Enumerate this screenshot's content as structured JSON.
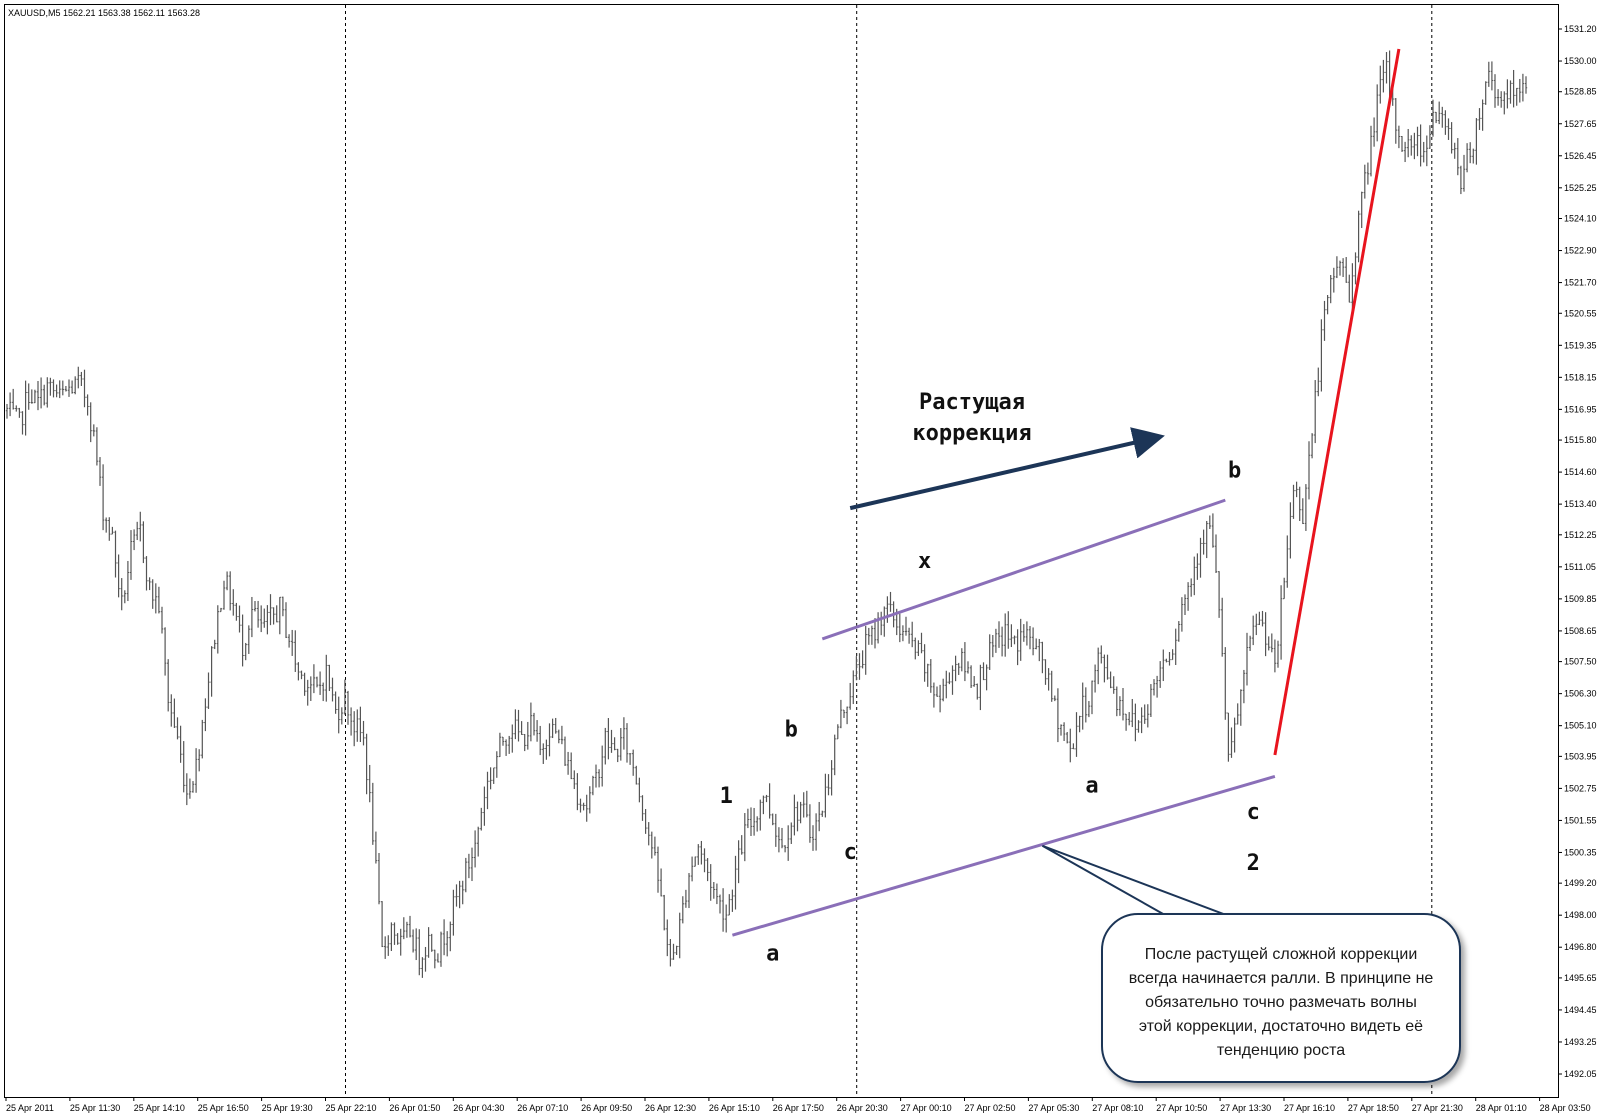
{
  "header": {
    "symbol_line": "XAUUSD,M5  1562.21 1563.38 1562.11 1563.28"
  },
  "colors": {
    "bars": "#555555",
    "channel": "#8a6fb8",
    "trend_red": "#e8141e",
    "arrow": "#1c3557",
    "grid": "#000000",
    "callout_border": "#1c3557"
  },
  "chart_data": {
    "type": "bar",
    "title": "",
    "symbol": "XAUUSD",
    "timeframe": "M5",
    "ylim": [
      1492.05,
      1531.2
    ],
    "y_ticks": [
      "1531.20",
      "1530.00",
      "1528.85",
      "1527.65",
      "1526.45",
      "1525.25",
      "1524.10",
      "1522.90",
      "1521.70",
      "1520.55",
      "1519.35",
      "1518.15",
      "1516.95",
      "1515.80",
      "1514.60",
      "1513.40",
      "1512.25",
      "1511.05",
      "1509.85",
      "1508.65",
      "1507.50",
      "1506.30",
      "1505.10",
      "1503.95",
      "1502.75",
      "1501.55",
      "1500.35",
      "1499.20",
      "1498.00",
      "1496.80",
      "1495.65",
      "1494.45",
      "1493.25",
      "1492.05"
    ],
    "x_ticks": [
      "25 Apr 2011",
      "25 Apr 11:30",
      "25 Apr 14:10",
      "25 Apr 16:50",
      "25 Apr 19:30",
      "25 Apr 22:10",
      "26 Apr 01:50",
      "26 Apr 04:30",
      "26 Apr 07:10",
      "26 Apr 09:50",
      "26 Apr 12:30",
      "26 Apr 15:10",
      "26 Apr 17:50",
      "26 Apr 20:30",
      "27 Apr 00:10",
      "27 Apr 02:50",
      "27 Apr 05:30",
      "27 Apr 08:10",
      "27 Apr 10:50",
      "27 Apr 13:30",
      "27 Apr 16:10",
      "27 Apr 18:50",
      "27 Apr 21:30",
      "28 Apr 01:10",
      "28 Apr 03:50"
    ],
    "day_separators_after_tick": [
      "25 Apr 22:10",
      "26 Apr 20:30",
      "27 Apr 21:30"
    ],
    "price_path": [
      [
        0,
        1516.9
      ],
      [
        4,
        1516.4
      ],
      [
        7,
        1517.6
      ],
      [
        10,
        1517.2
      ],
      [
        13,
        1517.8
      ],
      [
        17,
        1517.4
      ],
      [
        20,
        1517.7
      ],
      [
        23,
        1517.9
      ],
      [
        26,
        1517.3
      ],
      [
        28,
        1515.9
      ],
      [
        31,
        1513.2
      ],
      [
        34,
        1512.1
      ],
      [
        37,
        1509.6
      ],
      [
        40,
        1511.6
      ],
      [
        43,
        1512.4
      ],
      [
        46,
        1510.2
      ],
      [
        49,
        1509.6
      ],
      [
        52,
        1506.1
      ],
      [
        55,
        1504.6
      ],
      [
        58,
        1502.6
      ],
      [
        61,
        1503.6
      ],
      [
        64,
        1506.1
      ],
      [
        67,
        1508.5
      ],
      [
        70,
        1510.6
      ],
      [
        73,
        1509.6
      ],
      [
        76,
        1508.1
      ],
      [
        79,
        1509.4
      ],
      [
        82,
        1508.7
      ],
      [
        85,
        1509.1
      ],
      [
        88,
        1509.5
      ],
      [
        91,
        1508.4
      ],
      [
        94,
        1507.1
      ],
      [
        97,
        1506.7
      ],
      [
        100,
        1506.4
      ],
      [
        103,
        1507.1
      ],
      [
        106,
        1505.6
      ],
      [
        109,
        1506.1
      ],
      [
        112,
        1505.1
      ],
      [
        115,
        1504.6
      ],
      [
        118,
        1501.1
      ],
      [
        121,
        1496.6
      ],
      [
        124,
        1497.6
      ],
      [
        127,
        1496.9
      ],
      [
        130,
        1497.4
      ],
      [
        133,
        1496.4
      ],
      [
        136,
        1497.1
      ],
      [
        139,
        1496.6
      ],
      [
        142,
        1497.6
      ],
      [
        145,
        1498.6
      ],
      [
        148,
        1499.6
      ],
      [
        151,
        1500.6
      ],
      [
        154,
        1502.6
      ],
      [
        157,
        1503.6
      ],
      [
        160,
        1504.6
      ],
      [
        163,
        1505.1
      ],
      [
        166,
        1504.6
      ],
      [
        169,
        1505.1
      ],
      [
        172,
        1504.1
      ],
      [
        175,
        1505.1
      ],
      [
        178,
        1504.6
      ],
      [
        181,
        1503.6
      ],
      [
        184,
        1502.6
      ],
      [
        187,
        1502.1
      ],
      [
        190,
        1503.1
      ],
      [
        193,
        1504.6
      ],
      [
        196,
        1504.1
      ],
      [
        199,
        1504.6
      ],
      [
        202,
        1503.6
      ],
      [
        205,
        1502.1
      ],
      [
        208,
        1500.6
      ],
      [
        211,
        1498.6
      ],
      [
        214,
        1496.1
      ],
      [
        217,
        1497.6
      ],
      [
        220,
        1499.6
      ],
      [
        223,
        1500.6
      ],
      [
        226,
        1499.6
      ],
      [
        229,
        1498.6
      ],
      [
        232,
        1498.1
      ],
      [
        235,
        1499.6
      ],
      [
        238,
        1501.1
      ],
      [
        241,
        1501.6
      ],
      [
        244,
        1502.6
      ],
      [
        247,
        1501.6
      ],
      [
        250,
        1500.6
      ],
      [
        253,
        1501.6
      ],
      [
        256,
        1502.1
      ],
      [
        259,
        1501.1
      ],
      [
        262,
        1501.6
      ],
      [
        265,
        1503.1
      ],
      [
        268,
        1505.1
      ],
      [
        271,
        1506.1
      ],
      [
        274,
        1507.1
      ],
      [
        277,
        1508.1
      ],
      [
        280,
        1508.6
      ],
      [
        283,
        1509.6
      ],
      [
        286,
        1509.1
      ],
      [
        289,
        1508.6
      ],
      [
        292,
        1508.1
      ],
      [
        295,
        1507.6
      ],
      [
        298,
        1506.6
      ],
      [
        301,
        1506.1
      ],
      [
        304,
        1507.1
      ],
      [
        307,
        1507.6
      ],
      [
        310,
        1507.1
      ],
      [
        313,
        1506.6
      ],
      [
        316,
        1507.6
      ],
      [
        319,
        1508.1
      ],
      [
        322,
        1508.6
      ],
      [
        325,
        1508.1
      ],
      [
        328,
        1508.6
      ],
      [
        331,
        1508.1
      ],
      [
        334,
        1507.6
      ],
      [
        337,
        1506.1
      ],
      [
        340,
        1505.1
      ],
      [
        343,
        1504.1
      ],
      [
        346,
        1505.6
      ],
      [
        349,
        1506.1
      ],
      [
        352,
        1507.6
      ],
      [
        355,
        1507.1
      ],
      [
        358,
        1506.1
      ],
      [
        361,
        1505.6
      ],
      [
        364,
        1505.1
      ],
      [
        367,
        1505.6
      ],
      [
        370,
        1506.6
      ],
      [
        373,
        1507.6
      ],
      [
        376,
        1508.1
      ],
      [
        379,
        1509.6
      ],
      [
        382,
        1510.6
      ],
      [
        385,
        1512.1
      ],
      [
        388,
        1512.6
      ],
      [
        391,
        1509.6
      ],
      [
        394,
        1503.6
      ],
      [
        397,
        1505.6
      ],
      [
        400,
        1507.6
      ],
      [
        403,
        1509.1
      ],
      [
        406,
        1508.6
      ],
      [
        409,
        1507.1
      ],
      [
        412,
        1510.6
      ],
      [
        415,
        1514.1
      ],
      [
        418,
        1513.1
      ],
      [
        421,
        1516.1
      ],
      [
        424,
        1519.6
      ],
      [
        427,
        1521.6
      ],
      [
        430,
        1522.6
      ],
      [
        433,
        1521.1
      ],
      [
        436,
        1524.1
      ],
      [
        439,
        1526.1
      ],
      [
        442,
        1528.6
      ],
      [
        445,
        1529.6
      ],
      [
        448,
        1527.6
      ],
      [
        451,
        1526.6
      ],
      [
        454,
        1527.1
      ],
      [
        457,
        1526.6
      ],
      [
        460,
        1528.1
      ],
      [
        463,
        1527.6
      ],
      [
        466,
        1527.1
      ],
      [
        469,
        1525.6
      ],
      [
        472,
        1526.6
      ],
      [
        475,
        1528.1
      ],
      [
        478,
        1529.6
      ],
      [
        481,
        1528.6
      ],
      [
        484,
        1528.9
      ],
      [
        487,
        1528.6
      ],
      [
        490,
        1528.9
      ]
    ],
    "trend_lines": [
      {
        "kind": "channel-upper",
        "from": [
          263,
          1508.35
        ],
        "to": [
          393,
          1513.55
        ]
      },
      {
        "kind": "channel-lower",
        "from": [
          234,
          1497.25
        ],
        "to": [
          409,
          1503.2
        ]
      },
      {
        "kind": "impulse-red",
        "from": [
          409,
          1504.0
        ],
        "to": [
          449,
          1530.45
        ]
      },
      {
        "kind": "direction-arrow",
        "from": [
          272,
          1513.25
        ],
        "to": [
          371,
          1515.9
        ]
      }
    ],
    "wave_labels": [
      {
        "text": "1",
        "x": 232,
        "y": 1502.2
      },
      {
        "text": "b",
        "x": 253,
        "y": 1504.7
      },
      {
        "text": "c",
        "x": 272,
        "y": 1500.1
      },
      {
        "text": "a",
        "x": 247,
        "y": 1496.3
      },
      {
        "text": "x",
        "x": 296,
        "y": 1511.0
      },
      {
        "text": "a",
        "x": 350,
        "y": 1502.6
      },
      {
        "text": "b",
        "x": 396,
        "y": 1514.4
      },
      {
        "text": "c",
        "x": 402,
        "y": 1501.6
      },
      {
        "text": "2",
        "x": 402,
        "y": 1499.7
      }
    ],
    "trend_label": [
      "Растущая",
      "коррекция"
    ],
    "callout": {
      "text": [
        "После растущей сложной коррекции",
        "всегда начинается ралли. В принципе не",
        "обязательно точно размечать волны",
        "этой коррекции, достаточно видеть её",
        "тенденцию роста"
      ],
      "pointer_to": [
        334,
        1500.6
      ]
    },
    "grid": false,
    "legend": "none"
  }
}
